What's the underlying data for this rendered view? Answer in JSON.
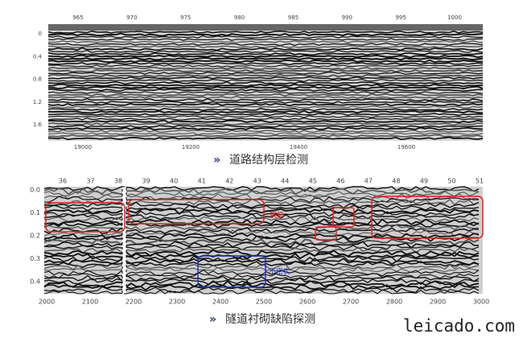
{
  "panels": [
    {
      "top_ticks": [
        "965",
        "970",
        "975",
        "980",
        "985",
        "990",
        "995",
        "1000"
      ],
      "bottom_ticks": [
        "19000",
        "19200",
        "19400",
        "19600"
      ],
      "left_ticks": [
        "0",
        "0.4",
        "0.8",
        "1.2",
        "1.6"
      ],
      "caption": "道路结构层检测"
    },
    {
      "top_ticks": [
        "36",
        "37",
        "38",
        "39",
        "40",
        "41",
        "42",
        "43",
        "44",
        "45",
        "46",
        "47",
        "48",
        "49",
        "50",
        "51"
      ],
      "bottom_ticks": [
        "2000",
        "2100",
        "2200",
        "2300",
        "2400",
        "2500",
        "2600",
        "2700",
        "2800",
        "2900",
        "3000"
      ],
      "left_ticks": [
        "0.0",
        "0.1",
        "0.2",
        "0.3",
        "0.4"
      ],
      "annotations": [
        "钢筋",
        "不密实"
      ],
      "caption": "隧道衬砌缺陷探测"
    }
  ],
  "watermark": "leicado.com"
}
